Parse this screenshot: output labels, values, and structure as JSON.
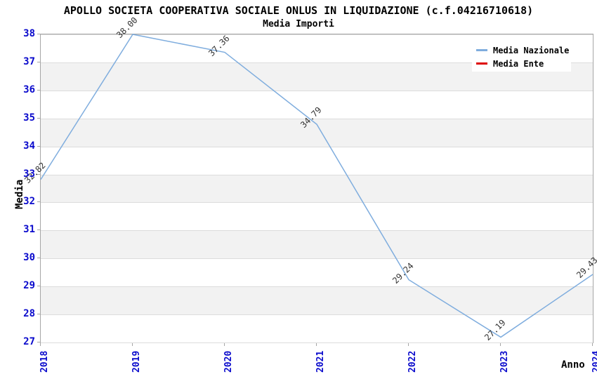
{
  "chart_data": {
    "type": "line",
    "title": "APOLLO SOCIETA COOPERATIVA SOCIALE ONLUS IN LIQUIDAZIONE (c.f.04216710618)",
    "subtitle": "Media Importi",
    "xlabel": "Anno",
    "ylabel": "Media",
    "x": [
      "2018",
      "2019",
      "2020",
      "2021",
      "2022",
      "2023",
      "2024"
    ],
    "series": [
      {
        "name": "Media Nazionale",
        "color": "#7FADDE",
        "values": [
          32.82,
          38.0,
          37.36,
          34.79,
          29.24,
          27.19,
          29.43
        ],
        "point_labels": [
          "32.82",
          "38.00",
          "37.36",
          "34.79",
          "29.24",
          "27.19",
          "29.43"
        ]
      },
      {
        "name": "Media Ente",
        "color": "#DD0000",
        "values": [],
        "point_labels": []
      }
    ],
    "ylim": [
      27,
      38
    ],
    "yticks": [
      38,
      37,
      36,
      35,
      34,
      33,
      32,
      31,
      30,
      29,
      28,
      27
    ],
    "legend_position": "top-right",
    "grid": {
      "horizontal_gridlines": true,
      "alternating_bands": true,
      "band_color": "#F2F2F2",
      "gridline_color": "#DCDCDC"
    },
    "tick_label_color": "#0A0ACC",
    "axis_color": "#A6A6A6"
  }
}
